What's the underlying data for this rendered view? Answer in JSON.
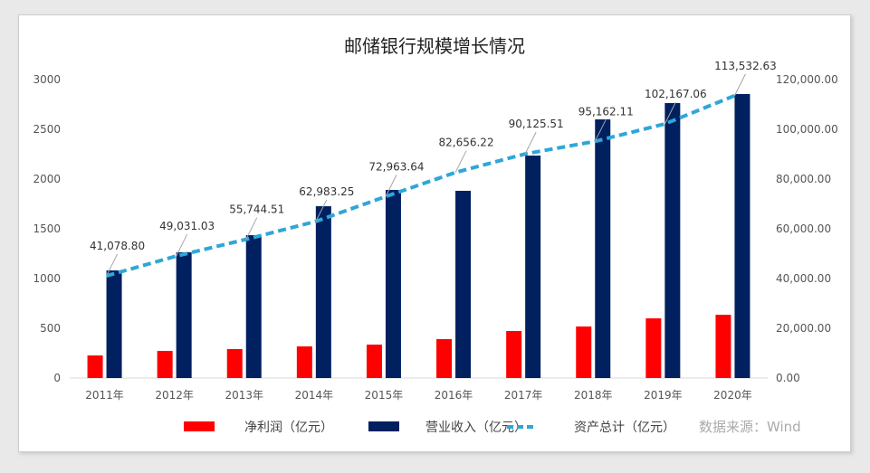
{
  "chart_data": {
    "type": "bar",
    "title": "邮储银行规模增长情况",
    "categories": [
      "2011年",
      "2012年",
      "2013年",
      "2014年",
      "2015年",
      "2016年",
      "2017年",
      "2018年",
      "2019年",
      "2020年"
    ],
    "series": [
      {
        "name": "净利润（亿元）",
        "type": "bar",
        "axis": "left",
        "color": "#ff0000",
        "values": [
          227,
          273,
          291,
          318,
          336,
          391,
          473,
          518,
          600,
          636
        ]
      },
      {
        "name": "营业收入（亿元）",
        "type": "bar",
        "axis": "left",
        "color": "#002060",
        "values": [
          1082,
          1264,
          1436,
          1727,
          1891,
          1882,
          2236,
          2600,
          2764,
          2855
        ]
      },
      {
        "name": "资产总计（亿元）",
        "type": "line",
        "style": "dashed",
        "axis": "right",
        "color": "#2ea7d8",
        "values": [
          41078.8,
          49031.03,
          55744.51,
          62983.25,
          72963.64,
          82656.22,
          90125.51,
          95162.11,
          102167.06,
          113532.63
        ],
        "data_labels": [
          "41,078.80",
          "49,031.03",
          "55,744.51",
          "62,983.25",
          "72,963.64",
          "82,656.22",
          "90,125.51",
          "95,162.11",
          "102,167.06",
          "113,532.63"
        ]
      }
    ],
    "ylim_left": [
      0,
      3000
    ],
    "yticks_left": [
      "0",
      "500",
      "1000",
      "1500",
      "2000",
      "2500",
      "3000"
    ],
    "ylim_right": [
      0,
      120000
    ],
    "yticks_right": [
      "0.00",
      "20,000.00",
      "40,000.00",
      "60,000.00",
      "80,000.00",
      "100,000.00",
      "120,000.00"
    ],
    "grid": false,
    "legend_position": "bottom",
    "source_note": "数据来源：Wind"
  }
}
